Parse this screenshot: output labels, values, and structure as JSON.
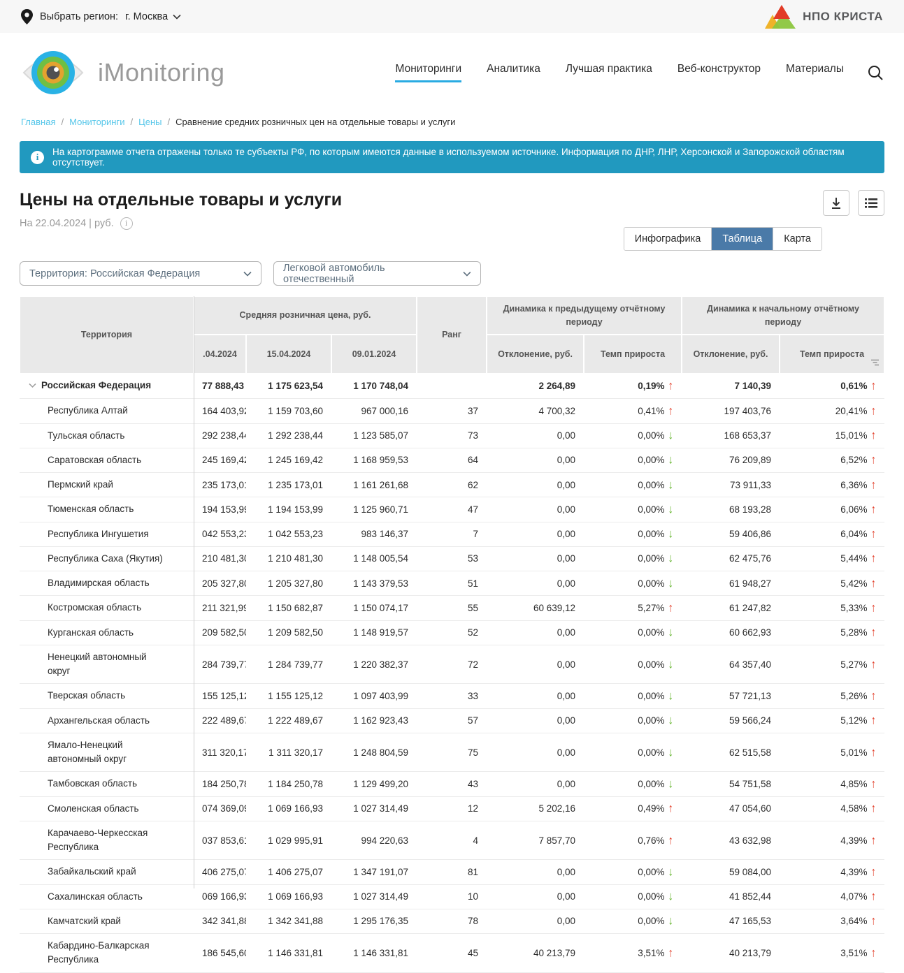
{
  "topbar": {
    "choose_region_label": "Выбрать регион:",
    "region_value": "г. Москва",
    "brand_name": "НПО КРИСТА",
    "brand_colors": {
      "red": "#e23b26",
      "yellow": "#efb32a",
      "green": "#8cc63e"
    }
  },
  "header": {
    "logo_text": "iMonitoring",
    "nav": [
      {
        "label": "Мониторинги",
        "active": true
      },
      {
        "label": "Аналитика",
        "active": false
      },
      {
        "label": "Лучшая практика",
        "active": false
      },
      {
        "label": "Веб-конструктор",
        "active": false
      },
      {
        "label": "Материалы",
        "active": false
      }
    ]
  },
  "breadcrumbs": [
    {
      "label": "Главная",
      "current": false
    },
    {
      "label": "Мониторинги",
      "current": false
    },
    {
      "label": "Цены",
      "current": false
    },
    {
      "label": "Сравнение средних розничных цен на отдельные товары и услуги",
      "current": true
    }
  ],
  "banner": {
    "text": "На картограмме отчета отражены только те субъекты РФ, по которым имеются данные в используемом источнике. Информация по ДНР,  ЛНР,  Херсонской и Запорожской областям отсутствует.",
    "color": "#2199bf"
  },
  "page": {
    "title": "Цены на отдельные товары и услуги",
    "date_line": "На 22.04.2024 | руб."
  },
  "view_tabs": [
    {
      "label": "Инфографика",
      "active": false
    },
    {
      "label": "Таблица",
      "active": true
    },
    {
      "label": "Карта",
      "active": false
    }
  ],
  "filters": {
    "territory": "Территория: Российская  Федерация",
    "product": "Легковой автомобиль отечественный"
  },
  "table": {
    "group_headers": {
      "territory": "Территория",
      "avg_price": "Средняя розничная цена, руб.",
      "rank": "Ранг",
      "dyn_prev": "Динамика к предыдущему отчётному периоду",
      "dyn_start": "Динамика к начальному отчётному периоду"
    },
    "sub_headers": {
      "date1": ".04.2024",
      "date2": "15.04.2024",
      "date3": "09.01.2024",
      "deviation": "Отклонение, руб.",
      "growth_rate": "Темп прироста"
    },
    "rows": [
      {
        "name": "Российская Федерация",
        "root": true,
        "p1": "77 888,43",
        "p2": "1 175 623,54",
        "p3": "1 170 748,04",
        "rank": "",
        "dev1": "2 264,89",
        "rate1": "0,19%",
        "dir1": "up",
        "dev2": "7 140,39",
        "rate2": "0,61%",
        "dir2": "up"
      },
      {
        "name": "Республика Алтай",
        "root": false,
        "p1": "164 403,92",
        "p2": "1 159 703,60",
        "p3": "967 000,16",
        "rank": "37",
        "dev1": "4 700,32",
        "rate1": "0,41%",
        "dir1": "up",
        "dev2": "197 403,76",
        "rate2": "20,41%",
        "dir2": "up"
      },
      {
        "name": "Тульская область",
        "root": false,
        "p1": "292 238,44",
        "p2": "1 292 238,44",
        "p3": "1 123 585,07",
        "rank": "73",
        "dev1": "0,00",
        "rate1": "0,00%",
        "dir1": "down",
        "dev2": "168 653,37",
        "rate2": "15,01%",
        "dir2": "up"
      },
      {
        "name": "Саратовская область",
        "root": false,
        "p1": "245 169,42",
        "p2": "1 245 169,42",
        "p3": "1 168 959,53",
        "rank": "64",
        "dev1": "0,00",
        "rate1": "0,00%",
        "dir1": "down",
        "dev2": "76 209,89",
        "rate2": "6,52%",
        "dir2": "up"
      },
      {
        "name": "Пермский край",
        "root": false,
        "p1": "235 173,01",
        "p2": "1 235 173,01",
        "p3": "1 161 261,68",
        "rank": "62",
        "dev1": "0,00",
        "rate1": "0,00%",
        "dir1": "down",
        "dev2": "73 911,33",
        "rate2": "6,36%",
        "dir2": "up"
      },
      {
        "name": "Тюменская область",
        "root": false,
        "p1": "194 153,99",
        "p2": "1 194 153,99",
        "p3": "1 125 960,71",
        "rank": "47",
        "dev1": "0,00",
        "rate1": "0,00%",
        "dir1": "down",
        "dev2": "68 193,28",
        "rate2": "6,06%",
        "dir2": "up"
      },
      {
        "name": "Республика Ингушетия",
        "root": false,
        "p1": "042 553,23",
        "p2": "1 042 553,23",
        "p3": "983 146,37",
        "rank": "7",
        "dev1": "0,00",
        "rate1": "0,00%",
        "dir1": "down",
        "dev2": "59 406,86",
        "rate2": "6,04%",
        "dir2": "up"
      },
      {
        "name": "Республика Саха (Якутия)",
        "root": false,
        "p1": "210 481,30",
        "p2": "1 210 481,30",
        "p3": "1 148 005,54",
        "rank": "53",
        "dev1": "0,00",
        "rate1": "0,00%",
        "dir1": "down",
        "dev2": "62 475,76",
        "rate2": "5,44%",
        "dir2": "up"
      },
      {
        "name": "Владимирская область",
        "root": false,
        "p1": "205 327,80",
        "p2": "1 205 327,80",
        "p3": "1 143 379,53",
        "rank": "51",
        "dev1": "0,00",
        "rate1": "0,00%",
        "dir1": "down",
        "dev2": "61 948,27",
        "rate2": "5,42%",
        "dir2": "up"
      },
      {
        "name": "Костромская область",
        "root": false,
        "p1": "211 321,99",
        "p2": "1 150 682,87",
        "p3": "1 150 074,17",
        "rank": "55",
        "dev1": "60 639,12",
        "rate1": "5,27%",
        "dir1": "up",
        "dev2": "61 247,82",
        "rate2": "5,33%",
        "dir2": "up"
      },
      {
        "name": "Курганская область",
        "root": false,
        "p1": "209 582,50",
        "p2": "1 209 582,50",
        "p3": "1 148 919,57",
        "rank": "52",
        "dev1": "0,00",
        "rate1": "0,00%",
        "dir1": "down",
        "dev2": "60 662,93",
        "rate2": "5,28%",
        "dir2": "up"
      },
      {
        "name": "Ненецкий автономный округ",
        "root": false,
        "p1": "284 739,77",
        "p2": "1 284 739,77",
        "p3": "1 220 382,37",
        "rank": "72",
        "dev1": "0,00",
        "rate1": "0,00%",
        "dir1": "down",
        "dev2": "64 357,40",
        "rate2": "5,27%",
        "dir2": "up"
      },
      {
        "name": "Тверская область",
        "root": false,
        "p1": "155 125,12",
        "p2": "1 155 125,12",
        "p3": "1 097 403,99",
        "rank": "33",
        "dev1": "0,00",
        "rate1": "0,00%",
        "dir1": "down",
        "dev2": "57 721,13",
        "rate2": "5,26%",
        "dir2": "up"
      },
      {
        "name": "Архангельская область",
        "root": false,
        "p1": "222 489,67",
        "p2": "1 222 489,67",
        "p3": "1 162 923,43",
        "rank": "57",
        "dev1": "0,00",
        "rate1": "0,00%",
        "dir1": "down",
        "dev2": "59 566,24",
        "rate2": "5,12%",
        "dir2": "up"
      },
      {
        "name": "Ямало-Ненецкий автономный округ",
        "root": false,
        "p1": "311 320,17",
        "p2": "1 311 320,17",
        "p3": "1 248 804,59",
        "rank": "75",
        "dev1": "0,00",
        "rate1": "0,00%",
        "dir1": "down",
        "dev2": "62 515,58",
        "rate2": "5,01%",
        "dir2": "up"
      },
      {
        "name": "Тамбовская область",
        "root": false,
        "p1": "184 250,78",
        "p2": "1 184 250,78",
        "p3": "1 129 499,20",
        "rank": "43",
        "dev1": "0,00",
        "rate1": "0,00%",
        "dir1": "down",
        "dev2": "54 751,58",
        "rate2": "4,85%",
        "dir2": "up"
      },
      {
        "name": "Смоленская область",
        "root": false,
        "p1": "074 369,09",
        "p2": "1 069 166,93",
        "p3": "1 027 314,49",
        "rank": "12",
        "dev1": "5 202,16",
        "rate1": "0,49%",
        "dir1": "up",
        "dev2": "47 054,60",
        "rate2": "4,58%",
        "dir2": "up"
      },
      {
        "name": "Карачаево-Черкесская Республика",
        "root": false,
        "p1": "037 853,61",
        "p2": "1 029 995,91",
        "p3": "994 220,63",
        "rank": "4",
        "dev1": "7 857,70",
        "rate1": "0,76%",
        "dir1": "up",
        "dev2": "43 632,98",
        "rate2": "4,39%",
        "dir2": "up"
      },
      {
        "name": "Забайкальский край",
        "root": false,
        "p1": "406 275,07",
        "p2": "1 406 275,07",
        "p3": "1 347 191,07",
        "rank": "81",
        "dev1": "0,00",
        "rate1": "0,00%",
        "dir1": "down",
        "dev2": "59 084,00",
        "rate2": "4,39%",
        "dir2": "up"
      },
      {
        "name": "Сахалинская область",
        "root": false,
        "p1": "069 166,93",
        "p2": "1 069 166,93",
        "p3": "1 027 314,49",
        "rank": "10",
        "dev1": "0,00",
        "rate1": "0,00%",
        "dir1": "down",
        "dev2": "41 852,44",
        "rate2": "4,07%",
        "dir2": "up"
      },
      {
        "name": "Камчатский край",
        "root": false,
        "p1": "342 341,88",
        "p2": "1 342 341,88",
        "p3": "1 295 176,35",
        "rank": "78",
        "dev1": "0,00",
        "rate1": "0,00%",
        "dir1": "down",
        "dev2": "47 165,53",
        "rate2": "3,64%",
        "dir2": "up"
      },
      {
        "name": "Кабардино-Балкарская Республика",
        "root": false,
        "p1": "186 545,60",
        "p2": "1 146 331,81",
        "p3": "1 146 331,81",
        "rank": "45",
        "dev1": "40 213,79",
        "rate1": "3,51%",
        "dir1": "up",
        "dev2": "40 213,79",
        "rate2": "3,51%",
        "dir2": "up"
      }
    ]
  },
  "colors": {
    "accent_cyan": "#29abe2",
    "tab_active": "#4a7aa8",
    "up_red": "#e23b26",
    "down_green": "#63b32c"
  }
}
